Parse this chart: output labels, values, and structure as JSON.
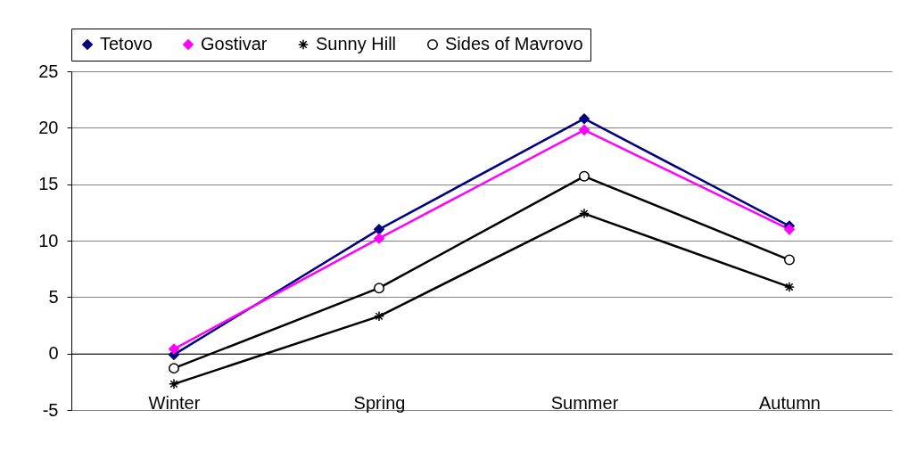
{
  "chart_data": {
    "type": "line",
    "categories": [
      "Winter",
      "Spring",
      "Summer",
      "Autumn"
    ],
    "series": [
      {
        "name": "Tetovo",
        "color": "#000080",
        "marker": "diamond",
        "values": [
          -0.1,
          11.0,
          20.8,
          11.3
        ]
      },
      {
        "name": "Gostivar",
        "color": "#ff00ff",
        "marker": "diamond",
        "values": [
          0.4,
          10.2,
          19.8,
          11.0
        ]
      },
      {
        "name": "Sunny Hill",
        "color": "#000000",
        "marker": "cross",
        "values": [
          -2.7,
          3.3,
          12.4,
          5.9
        ]
      },
      {
        "name": "Sides of Mavrovo",
        "color": "#000000",
        "marker": "circle",
        "values": [
          -1.3,
          5.8,
          15.7,
          8.3
        ]
      }
    ],
    "ylim": [
      -5,
      25
    ],
    "yticks": [
      -5,
      0,
      5,
      10,
      15,
      20,
      25
    ],
    "grid": "y",
    "legend": "top"
  }
}
